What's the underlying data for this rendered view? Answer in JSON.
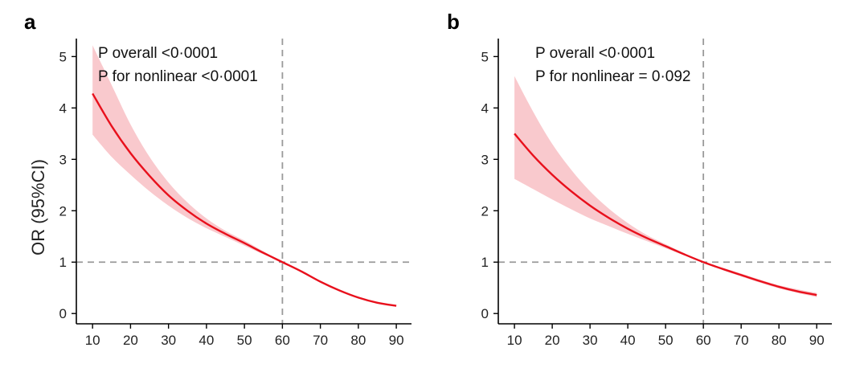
{
  "chart_data": [
    {
      "type": "line",
      "panel_label": "a",
      "ylabel": "OR (95%CI)",
      "xlabel": "",
      "xlim": [
        7,
        94
      ],
      "ylim": [
        -0.2,
        5.35
      ],
      "xticks": [
        10,
        20,
        30,
        40,
        50,
        60,
        70,
        80,
        90
      ],
      "yticks": [
        0,
        1,
        2,
        3,
        4,
        5
      ],
      "annotations": [
        "P overall <0·0001",
        "P for nonlinear <0·0001"
      ],
      "reference_lines": {
        "x": 60,
        "y": 1
      },
      "series": [
        {
          "x": [
            10,
            15,
            20,
            25,
            30,
            35,
            40,
            45,
            50,
            55,
            60,
            65,
            70,
            75,
            80,
            85,
            90
          ],
          "y": [
            4.28,
            3.65,
            3.12,
            2.68,
            2.3,
            2.0,
            1.75,
            1.55,
            1.37,
            1.18,
            1.0,
            0.82,
            0.62,
            0.45,
            0.31,
            0.21,
            0.15
          ],
          "lower": [
            3.48,
            3.05,
            2.7,
            2.38,
            2.1,
            1.86,
            1.66,
            1.49,
            1.32,
            1.15,
            1.0,
            0.8,
            0.6,
            0.43,
            0.3,
            0.2,
            0.14
          ],
          "upper": [
            5.22,
            4.45,
            3.68,
            3.05,
            2.55,
            2.16,
            1.85,
            1.61,
            1.42,
            1.21,
            1.0,
            0.84,
            0.64,
            0.47,
            0.33,
            0.22,
            0.16
          ]
        }
      ],
      "grid": false
    },
    {
      "type": "line",
      "panel_label": "b",
      "ylabel": "",
      "xlabel": "",
      "xlim": [
        7,
        94
      ],
      "ylim": [
        -0.2,
        5.35
      ],
      "xticks": [
        10,
        20,
        30,
        40,
        50,
        60,
        70,
        80,
        90
      ],
      "yticks": [
        0,
        1,
        2,
        3,
        4,
        5
      ],
      "annotations": [
        "P overall <0·0001",
        "P for nonlinear = 0·092"
      ],
      "reference_lines": {
        "x": 60,
        "y": 1
      },
      "series": [
        {
          "x": [
            10,
            15,
            20,
            25,
            30,
            35,
            40,
            45,
            50,
            55,
            60,
            65,
            70,
            75,
            80,
            85,
            90
          ],
          "y": [
            3.5,
            3.07,
            2.7,
            2.38,
            2.1,
            1.86,
            1.65,
            1.47,
            1.31,
            1.15,
            1.0,
            0.87,
            0.75,
            0.63,
            0.52,
            0.43,
            0.36
          ],
          "lower": [
            2.62,
            2.42,
            2.22,
            2.03,
            1.85,
            1.7,
            1.55,
            1.41,
            1.27,
            1.13,
            1.0,
            0.85,
            0.72,
            0.6,
            0.49,
            0.4,
            0.32
          ],
          "upper": [
            4.62,
            3.92,
            3.3,
            2.8,
            2.38,
            2.04,
            1.76,
            1.53,
            1.35,
            1.17,
            1.0,
            0.89,
            0.78,
            0.66,
            0.55,
            0.47,
            0.4
          ]
        }
      ],
      "grid": false
    }
  ],
  "colors": {
    "curve": "#e8101c",
    "band": "#f9c9cd",
    "reference": "#9a9a9a",
    "axis": "#000000"
  }
}
